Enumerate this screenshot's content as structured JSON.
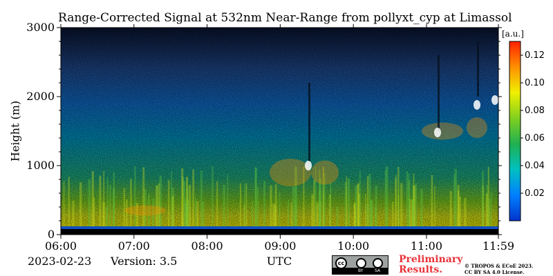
{
  "chart_data": {
    "type": "heatmap",
    "title": "Range-Corrected Signal at 532nm Near-Range from pollyxt_cyp at Limassol",
    "xlabel": "UTC",
    "ylabel": "Height (m)",
    "x_ticks": [
      "06:00",
      "07:00",
      "08:00",
      "09:00",
      "10:00",
      "11:00",
      "11:59"
    ],
    "x_range": [
      "06:00",
      "11:59"
    ],
    "y_ticks": [
      0,
      1000,
      2000,
      3000
    ],
    "ylim": [
      0,
      3000
    ],
    "colorbar": {
      "unit": "[a.u.]",
      "ticks": [
        0.02,
        0.04,
        0.06,
        0.08,
        0.1,
        0.12
      ],
      "tick_labels": [
        "0.02",
        "0.04",
        "0.06",
        "0.08",
        "0.10",
        "0.12"
      ],
      "range": [
        0.0,
        0.13
      ],
      "colormap": [
        "#0033cc",
        "#0080ff",
        "#00c0c0",
        "#20b050",
        "#80d020",
        "#f0f000",
        "#ff9000",
        "#ff2000"
      ]
    }
  },
  "footer": {
    "date": "2023-02-23",
    "version": "Version: 3.5",
    "license_badge": {
      "by": "BY",
      "sa": "SA"
    },
    "preliminary_line1": "Preliminary",
    "preliminary_line2": "Results.",
    "credit_line1": "© TROPOS & ECoE 2023.",
    "credit_line2": "CC BY SA 4.0 License."
  }
}
